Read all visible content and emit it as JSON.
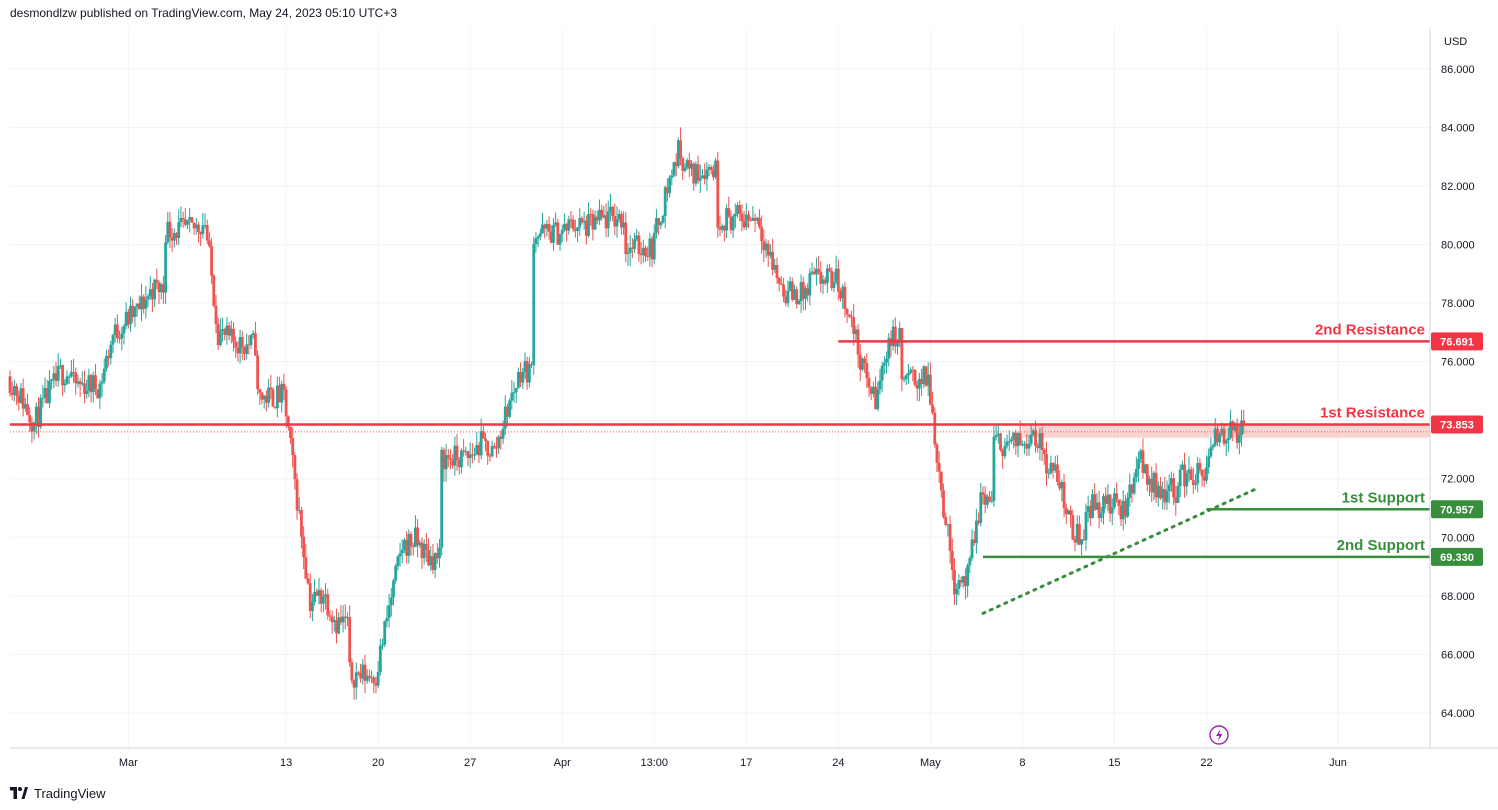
{
  "header": {
    "publish_text": "desmondlzw published on TradingView.com, May 24, 2023 05:10 UTC+3"
  },
  "footer": {
    "brand": "TradingView"
  },
  "colors": {
    "up": "#26a69a",
    "down": "#ef5350",
    "resistance": "#f23645",
    "support": "#388e3c",
    "zone": "#f7c5c2",
    "grid": "#f0f3fa",
    "lightning": "#9c27b0"
  },
  "chart_data": {
    "type": "candlestick",
    "currency_label": "USD",
    "ylim": [
      62.8,
      87.4
    ],
    "x_range": [
      "2023-02-20",
      "2023-06-08"
    ],
    "y_ticks": [
      "86.000",
      "84.000",
      "82.000",
      "80.000",
      "78.000",
      "76.000",
      "74.000",
      "72.000",
      "70.000",
      "68.000",
      "66.000",
      "64.000"
    ],
    "x_ticks": [
      {
        "label": "Mar",
        "date": "2023-03-01"
      },
      {
        "label": "13",
        "date": "2023-03-13"
      },
      {
        "label": "20",
        "date": "2023-03-20"
      },
      {
        "label": "27",
        "date": "2023-03-27"
      },
      {
        "label": "Apr",
        "date": "2023-04-03"
      },
      {
        "label": "13:00",
        "date": "2023-04-10"
      },
      {
        "label": "17",
        "date": "2023-04-17"
      },
      {
        "label": "24",
        "date": "2023-04-24"
      },
      {
        "label": "May",
        "date": "2023-05-01"
      },
      {
        "label": "8",
        "date": "2023-05-08"
      },
      {
        "label": "15",
        "date": "2023-05-15"
      },
      {
        "label": "22",
        "date": "2023-05-22"
      },
      {
        "label": "Jun",
        "date": "2023-06-01"
      }
    ],
    "levels": [
      {
        "name": "2nd Resistance",
        "value": 76.691,
        "tag": "76.691",
        "kind": "resistance",
        "from": "2023-04-24"
      },
      {
        "name": "1st Resistance",
        "value": 73.853,
        "tag": "73.853",
        "kind": "resistance",
        "from": "2023-02-20"
      },
      {
        "name": "1st Support",
        "value": 70.957,
        "tag": "70.957",
        "kind": "support",
        "from": "2023-05-22"
      },
      {
        "name": "2nd Support",
        "value": 69.33,
        "tag": "69.330",
        "kind": "support",
        "from": "2023-05-05"
      }
    ],
    "resistance_zone": {
      "from": "2023-05-08",
      "y_low": 73.4,
      "y_high": 73.853
    },
    "current_price": 73.6,
    "trendline": {
      "start": {
        "date": "2023-05-05",
        "y": 67.4
      },
      "end": {
        "date": "2023-05-26",
        "y": 71.7
      }
    },
    "price_path": [
      [
        "2023-02-20",
        75.5
      ],
      [
        "2023-02-21",
        74.8
      ],
      [
        "2023-02-22",
        73.9
      ],
      [
        "2023-02-23",
        74.8
      ],
      [
        "2023-02-24",
        75.6
      ],
      [
        "2023-02-27",
        75.2
      ],
      [
        "2023-02-28",
        76.9
      ],
      [
        "2023-03-01",
        77.4
      ],
      [
        "2023-03-02",
        77.8
      ],
      [
        "2023-03-03",
        78.5
      ],
      [
        "2023-03-06",
        80.5
      ],
      [
        "2023-03-07",
        80.8
      ],
      [
        "2023-03-08",
        77.0
      ],
      [
        "2023-03-09",
        76.7
      ],
      [
        "2023-03-10",
        76.6
      ],
      [
        "2023-03-13",
        74.8
      ],
      [
        "2023-03-14",
        71.3
      ],
      [
        "2023-03-15",
        67.8
      ],
      [
        "2023-03-16",
        68.1
      ],
      [
        "2023-03-17",
        67.1
      ],
      [
        "2023-03-20",
        65.3
      ],
      [
        "2023-03-21",
        67.6
      ],
      [
        "2023-03-22",
        69.7
      ],
      [
        "2023-03-23",
        69.9
      ],
      [
        "2023-03-24",
        69.3
      ],
      [
        "2023-03-27",
        72.7
      ],
      [
        "2023-03-28",
        73.2
      ],
      [
        "2023-03-29",
        72.9
      ],
      [
        "2023-03-30",
        74.4
      ],
      [
        "2023-03-31",
        75.7
      ],
      [
        "2023-04-03",
        80.4
      ],
      [
        "2023-04-04",
        80.7
      ],
      [
        "2023-04-05",
        80.6
      ],
      [
        "2023-04-06",
        80.8
      ],
      [
        "2023-04-07",
        80.9
      ],
      [
        "2023-04-10",
        79.9
      ],
      [
        "2023-04-11",
        81.7
      ],
      [
        "2023-04-12",
        83.2
      ],
      [
        "2023-04-13",
        82.4
      ],
      [
        "2023-04-14",
        82.6
      ],
      [
        "2023-04-17",
        80.9
      ],
      [
        "2023-04-18",
        81.0
      ],
      [
        "2023-04-19",
        79.5
      ],
      [
        "2023-04-20",
        78.4
      ],
      [
        "2023-04-21",
        78.3
      ],
      [
        "2023-04-24",
        78.8
      ],
      [
        "2023-04-25",
        77.7
      ],
      [
        "2023-04-26",
        75.8
      ],
      [
        "2023-04-27",
        74.6
      ],
      [
        "2023-04-28",
        76.8
      ],
      [
        "2023-05-01",
        75.4
      ],
      [
        "2023-05-02",
        71.6
      ],
      [
        "2023-05-03",
        68.5
      ],
      [
        "2023-05-04",
        68.6
      ],
      [
        "2023-05-05",
        71.3
      ],
      [
        "2023-05-08",
        73.2
      ],
      [
        "2023-05-09",
        73.7
      ],
      [
        "2023-05-10",
        72.6
      ],
      [
        "2023-05-11",
        71.9
      ],
      [
        "2023-05-12",
        70.1
      ],
      [
        "2023-05-15",
        71.1
      ],
      [
        "2023-05-16",
        70.9
      ],
      [
        "2023-05-17",
        72.8
      ],
      [
        "2023-05-18",
        71.8
      ],
      [
        "2023-05-19",
        71.6
      ],
      [
        "2023-05-22",
        72.1
      ],
      [
        "2023-05-23",
        73.5
      ],
      [
        "2023-05-24",
        73.6
      ]
    ]
  }
}
